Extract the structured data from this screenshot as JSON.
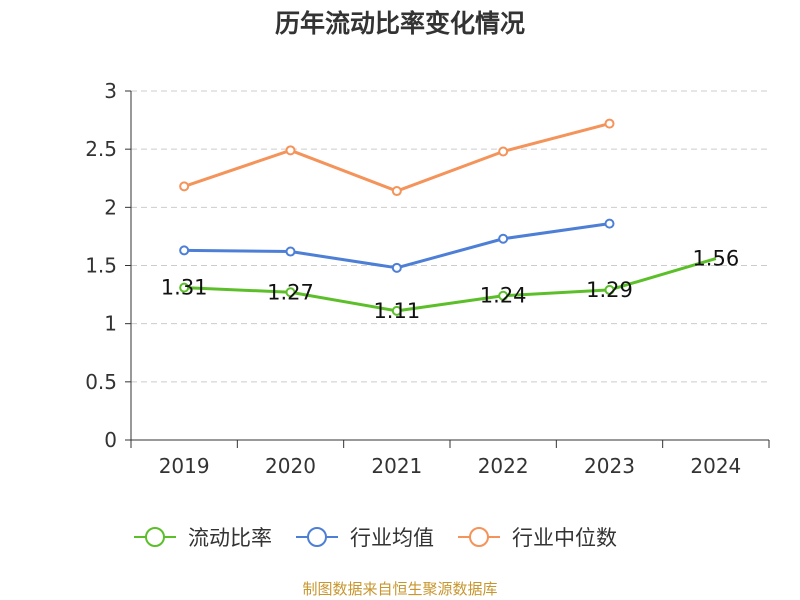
{
  "chart_data": {
    "type": "line",
    "title": "历年流动比率变化情况",
    "categories": [
      "2019",
      "2020",
      "2021",
      "2022",
      "2023",
      "2024"
    ],
    "ylim": [
      0,
      3
    ],
    "yticks": [
      "0",
      "0.5",
      "1",
      "1.5",
      "2",
      "2.5",
      "3"
    ],
    "grid": true,
    "legend_position": "bottom",
    "series": [
      {
        "name": "流动比率",
        "color": "#5cbf2a",
        "values": [
          1.31,
          1.27,
          1.11,
          1.24,
          1.29,
          1.56
        ],
        "labels": [
          "1.31",
          "1.27",
          "1.11",
          "1.24",
          "1.29",
          "1.56"
        ],
        "show_markers": [
          true,
          true,
          true,
          true,
          true,
          false
        ]
      },
      {
        "name": "行业均值",
        "color": "#4e7fd6",
        "values": [
          1.63,
          1.62,
          1.48,
          1.73,
          1.86,
          null
        ]
      },
      {
        "name": "行业中位数",
        "color": "#f4935a",
        "values": [
          2.18,
          2.49,
          2.14,
          2.48,
          2.72,
          null
        ]
      }
    ]
  },
  "source_note": "制图数据来自恒生聚源数据库"
}
